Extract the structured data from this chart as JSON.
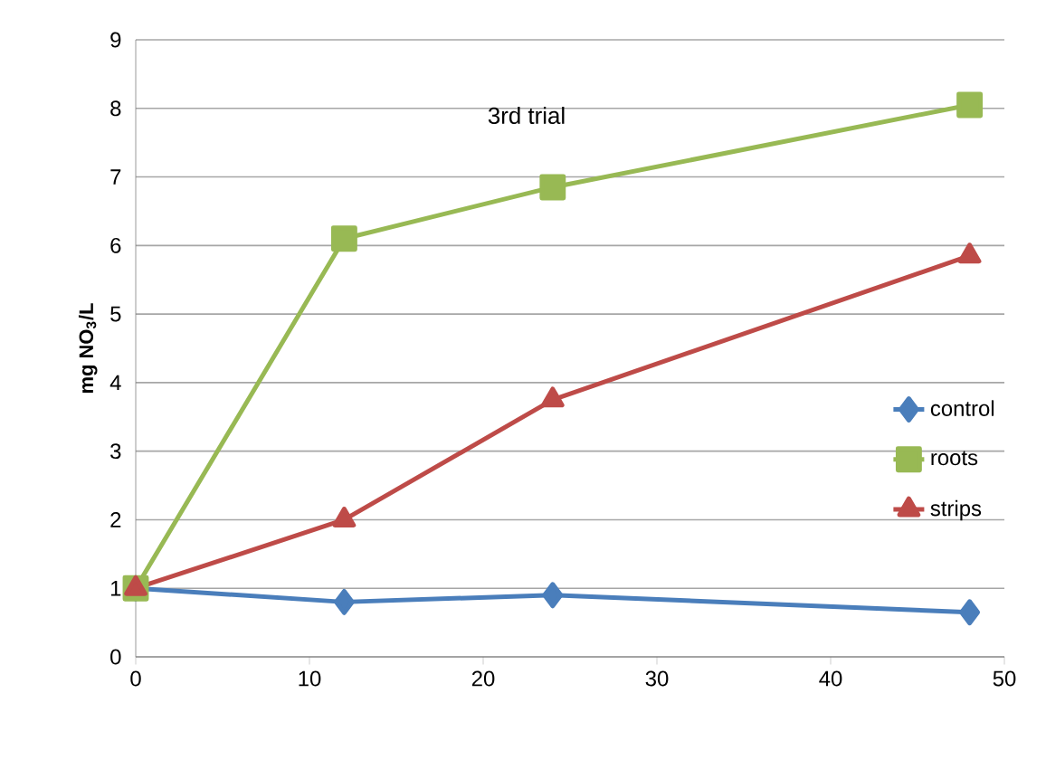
{
  "chart_data": {
    "type": "line",
    "title": "3rd trial",
    "ylabel": "mg NO$_{3}$/L",
    "x": [
      0,
      12,
      24,
      48
    ],
    "series": [
      {
        "name": "control",
        "color": "#4a7ebb",
        "marker": "diamond",
        "values": [
          1.0,
          0.8,
          0.9,
          0.65
        ]
      },
      {
        "name": "roots",
        "color": "#98b954",
        "marker": "square",
        "values": [
          1.0,
          6.1,
          6.85,
          8.05
        ]
      },
      {
        "name": "strips",
        "color": "#be4b48",
        "marker": "triangle",
        "values": [
          1.0,
          2.0,
          3.75,
          5.85
        ]
      }
    ],
    "xlim": [
      0,
      50
    ],
    "xticks": [
      0,
      10,
      20,
      30,
      40,
      50
    ],
    "ylim": [
      0,
      9
    ],
    "yticks": [
      0,
      1,
      2,
      3,
      4,
      5,
      6,
      7,
      8,
      9
    ],
    "grid": "y",
    "legend": "right"
  }
}
